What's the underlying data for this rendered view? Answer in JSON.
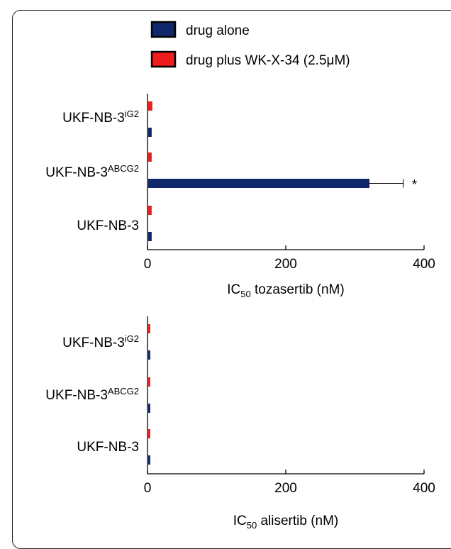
{
  "legend": [
    {
      "label": "drug alone",
      "color": "#10286b"
    },
    {
      "label": "drug plus WK-X-34 (2.5μM)",
      "color": "#ee1c1c"
    }
  ],
  "chart_data": [
    {
      "type": "bar",
      "orientation": "horizontal",
      "categories": [
        {
          "base": "UKF-NB-3",
          "sup": "iG2"
        },
        {
          "base": "UKF-NB-3",
          "sup": "ABCG2"
        },
        {
          "base": "UKF-NB-3",
          "sup": ""
        }
      ],
      "series": [
        {
          "name": "drug plus WK-X-34 (2.5μM)",
          "color": "#ee1c1c",
          "values": [
            6,
            5,
            5
          ],
          "errors": [
            0,
            0,
            0
          ]
        },
        {
          "name": "drug alone",
          "color": "#10286b",
          "values": [
            5,
            320,
            5
          ],
          "errors": [
            0,
            50,
            0
          ]
        }
      ],
      "xlim": [
        0,
        400
      ],
      "xticks": [
        "0",
        "200",
        "400"
      ],
      "xlabel": {
        "pre": "IC",
        "sub": "50",
        "post": " tozasertib (nM)"
      },
      "annotation": "*"
    },
    {
      "type": "bar",
      "orientation": "horizontal",
      "categories": [
        {
          "base": "UKF-NB-3",
          "sup": "iG2"
        },
        {
          "base": "UKF-NB-3",
          "sup": "ABCG2"
        },
        {
          "base": "UKF-NB-3",
          "sup": ""
        }
      ],
      "series": [
        {
          "name": "drug plus WK-X-34 (2.5μM)",
          "color": "#ee1c1c",
          "values": [
            3,
            3,
            3
          ],
          "errors": [
            0,
            0,
            0
          ]
        },
        {
          "name": "drug alone",
          "color": "#10286b",
          "values": [
            3,
            3,
            3
          ],
          "errors": [
            0,
            0,
            0
          ]
        }
      ],
      "xlim": [
        0,
        400
      ],
      "xticks": [
        "0",
        "200",
        "400"
      ],
      "xlabel": {
        "pre": "IC",
        "sub": "50",
        "post": " alisertib (nM)"
      }
    }
  ]
}
